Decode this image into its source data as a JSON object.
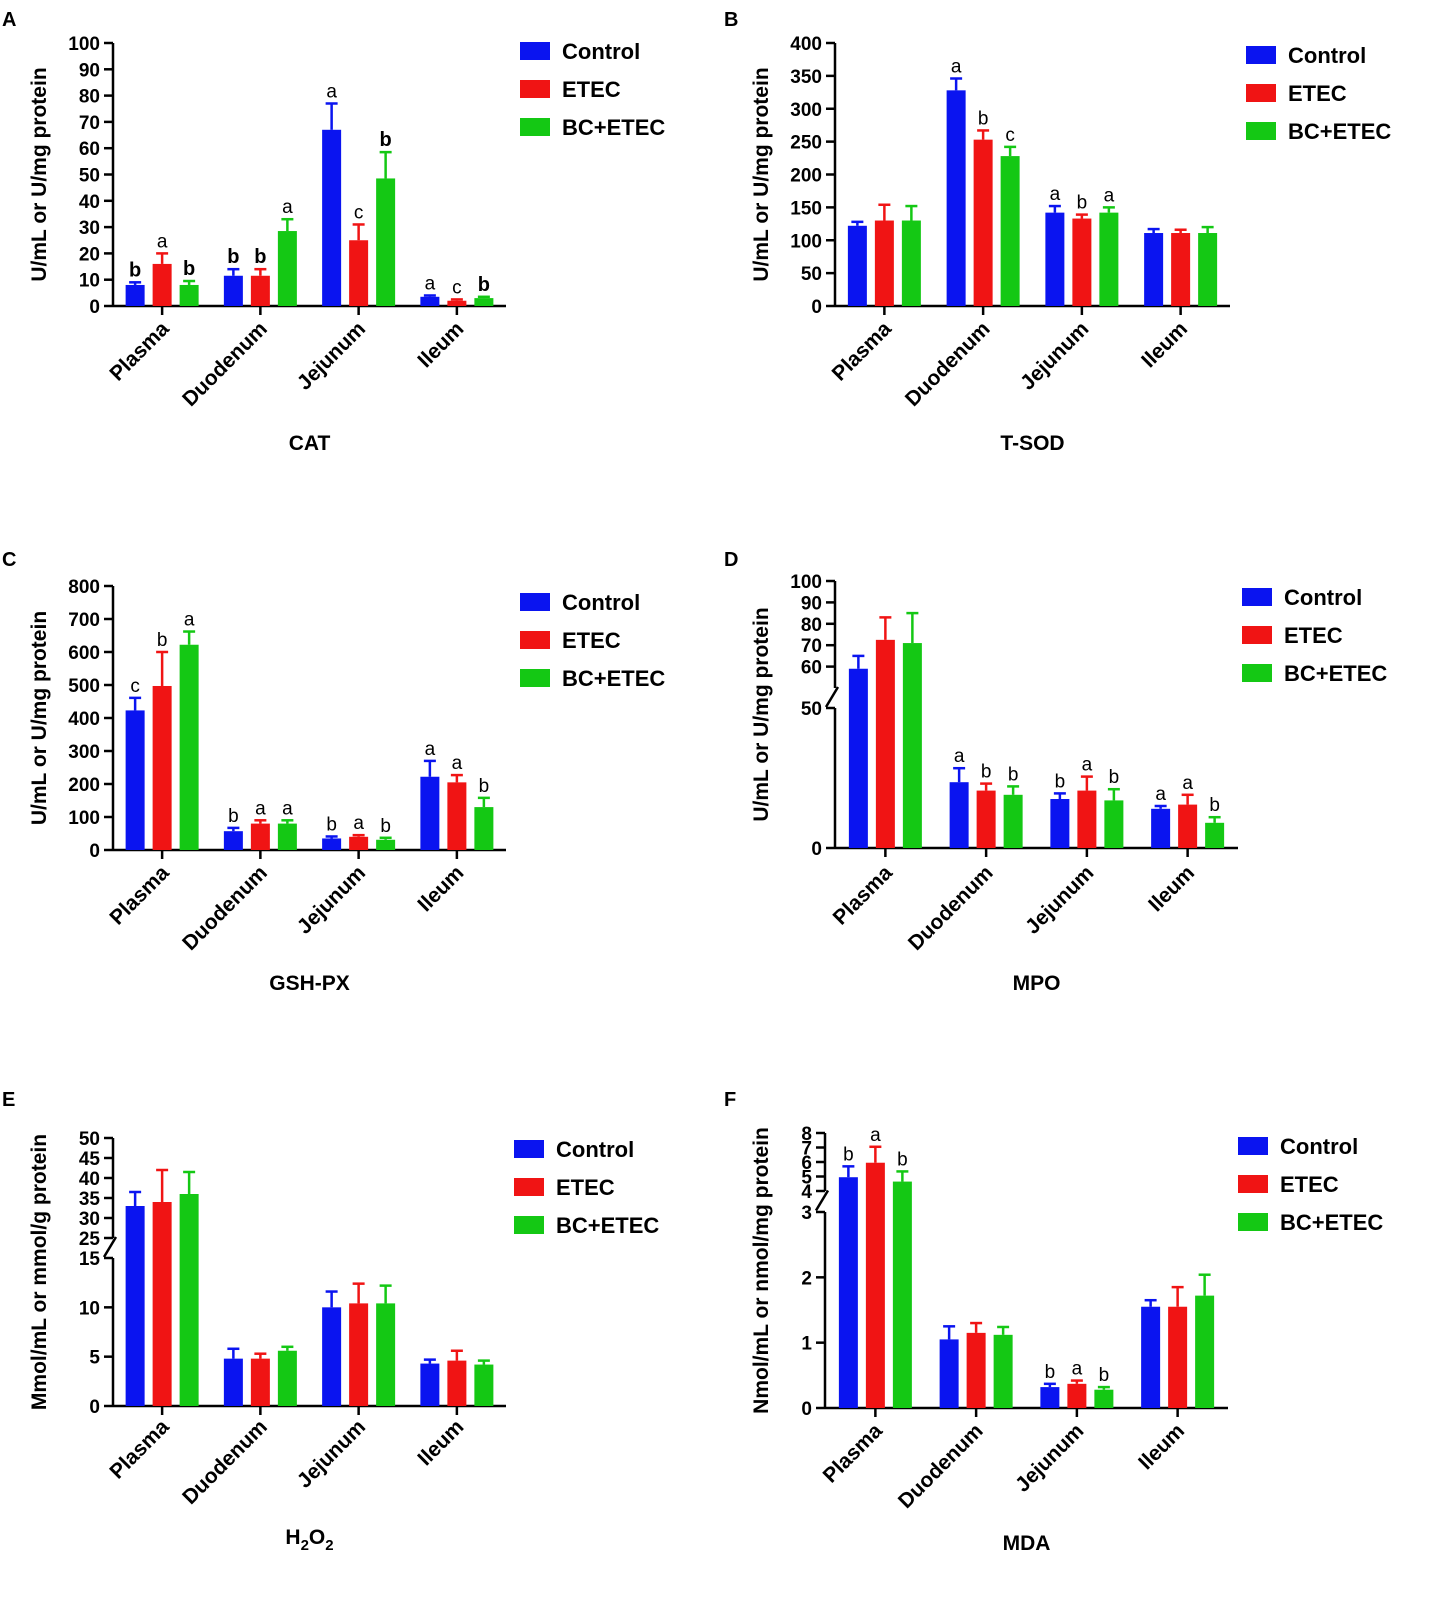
{
  "colors": {
    "control": "#0a14f0",
    "etec": "#f01414",
    "bcetec": "#14c814"
  },
  "legend": [
    "Control",
    "ETEC",
    "BC+ETEC"
  ],
  "chart_data": [
    {
      "panel": "A",
      "type": "bar",
      "title": "CAT",
      "title_sub": "",
      "ylabel": "U/mL or U/mg protein",
      "categories": [
        "Plasma",
        "Duodenum",
        "Jejunum",
        "Ileum"
      ],
      "ylim": [
        0,
        100
      ],
      "yticks": [
        0,
        10,
        20,
        30,
        40,
        50,
        60,
        70,
        80,
        90,
        100
      ],
      "series": [
        {
          "name": "Control",
          "values": [
            8,
            11.5,
            67,
            3.5
          ],
          "errors": [
            1,
            2.5,
            10,
            0.5
          ],
          "letters": [
            "b",
            "b",
            "a",
            "a"
          ]
        },
        {
          "name": "ETEC",
          "values": [
            16,
            11.5,
            25,
            2
          ],
          "errors": [
            4,
            2.5,
            6,
            0.5
          ],
          "letters": [
            "a",
            "b",
            "c",
            "c"
          ]
        },
        {
          "name": "BC+ETEC",
          "values": [
            8,
            28.5,
            48.5,
            3
          ],
          "errors": [
            1.5,
            4.5,
            10,
            0.5
          ],
          "letters": [
            "b",
            "a",
            "b",
            "b"
          ]
        }
      ],
      "bold_letters": [
        [
          "b",
          "b",
          "",
          ""
        ],
        [
          "",
          "b",
          "",
          ""
        ],
        [
          "b",
          "",
          "b",
          "b"
        ]
      ]
    },
    {
      "panel": "B",
      "type": "bar",
      "title": "T-SOD",
      "title_sub": "",
      "ylabel": "U/mL or U/mg protein",
      "categories": [
        "Plasma",
        "Duodenum",
        "Jejunum",
        "Ileum"
      ],
      "ylim": [
        0,
        400
      ],
      "yticks": [
        0,
        50,
        100,
        150,
        200,
        250,
        300,
        350,
        400
      ],
      "series": [
        {
          "name": "Control",
          "values": [
            122,
            328,
            142,
            111
          ],
          "errors": [
            6,
            18,
            10,
            6
          ],
          "letters": [
            "",
            "a",
            "a",
            ""
          ]
        },
        {
          "name": "ETEC",
          "values": [
            130,
            253,
            133,
            111
          ],
          "errors": [
            24,
            14,
            6,
            5
          ],
          "letters": [
            "",
            "b",
            "b",
            ""
          ]
        },
        {
          "name": "BC+ETEC",
          "values": [
            130,
            228,
            142,
            111
          ],
          "errors": [
            22,
            14,
            8,
            9
          ],
          "letters": [
            "",
            "c",
            "a",
            ""
          ]
        }
      ]
    },
    {
      "panel": "C",
      "type": "bar",
      "title": "GSH-PX",
      "title_sub": "",
      "ylabel": "U/mL or U/mg protein",
      "categories": [
        "Plasma",
        "Duodenum",
        "Jejunum",
        "Ileum"
      ],
      "ylim": [
        0,
        800
      ],
      "yticks": [
        0,
        100,
        200,
        300,
        400,
        500,
        600,
        700,
        800
      ],
      "series": [
        {
          "name": "Control",
          "values": [
            423,
            57,
            35,
            222
          ],
          "errors": [
            38,
            10,
            6,
            48
          ],
          "letters": [
            "c",
            "b",
            "b",
            "a"
          ]
        },
        {
          "name": "ETEC",
          "values": [
            497,
            80,
            40,
            205
          ],
          "errors": [
            103,
            10,
            5,
            22
          ],
          "letters": [
            "b",
            "a",
            "a",
            "a"
          ]
        },
        {
          "name": "BC+ETEC",
          "values": [
            622,
            80,
            31,
            130
          ],
          "errors": [
            40,
            10,
            6,
            28
          ],
          "letters": [
            "a",
            "a",
            "b",
            "b"
          ]
        }
      ]
    },
    {
      "panel": "D",
      "type": "bar",
      "title": "MPO",
      "title_sub": "",
      "ylabel": "U/mL or U/mg protein",
      "categories": [
        "Plasma",
        "Duodenum",
        "Jejunum",
        "Ileum"
      ],
      "ylim": [
        0,
        100
      ],
      "axis_break": [
        50,
        50
      ],
      "yticks": [
        0,
        50,
        60,
        70,
        80,
        90,
        100
      ],
      "series": [
        {
          "name": "Control",
          "values": [
            59,
            23.5,
            17.5,
            14
          ],
          "errors": [
            6,
            5,
            2,
            1
          ],
          "letters": [
            "",
            "a",
            "b",
            "a"
          ]
        },
        {
          "name": "ETEC",
          "values": [
            72.5,
            20.5,
            20.5,
            15.5
          ],
          "errors": [
            10.5,
            2.5,
            5,
            3.5
          ],
          "letters": [
            "",
            "b",
            "a",
            "a"
          ]
        },
        {
          "name": "BC+ETEC",
          "values": [
            71,
            19,
            17,
            9
          ],
          "errors": [
            14,
            3,
            4,
            2
          ],
          "letters": [
            "",
            "b",
            "b",
            "b"
          ]
        }
      ]
    },
    {
      "panel": "E",
      "type": "bar",
      "title": "H",
      "title_sub": "2",
      "title_tail": "O",
      "title_sub2": "2",
      "ylabel": "Mmol/mL or mmol/g protein",
      "categories": [
        "Plasma",
        "Duodenum",
        "Jejunum",
        "Ileum"
      ],
      "ylim": [
        0,
        50
      ],
      "axis_break": [
        15,
        25
      ],
      "yticks": [
        0,
        5,
        10,
        15,
        25,
        30,
        35,
        40,
        45,
        50
      ],
      "series": [
        {
          "name": "Control",
          "values": [
            33,
            4.8,
            10,
            4.3
          ],
          "errors": [
            3.5,
            1,
            1.6,
            0.4
          ],
          "letters": [
            "",
            "",
            "",
            ""
          ]
        },
        {
          "name": "ETEC",
          "values": [
            34,
            4.8,
            10.4,
            4.6
          ],
          "errors": [
            8,
            0.5,
            2,
            1
          ],
          "letters": [
            "",
            "",
            "",
            ""
          ]
        },
        {
          "name": "BC+ETEC",
          "values": [
            36,
            5.6,
            10.4,
            4.2
          ],
          "errors": [
            5.5,
            0.4,
            1.8,
            0.4
          ],
          "letters": [
            "",
            "",
            "",
            ""
          ]
        }
      ]
    },
    {
      "panel": "F",
      "type": "bar",
      "title": "MDA",
      "title_sub": "",
      "ylabel": "Nmol/mL or nmol/mg protein",
      "categories": [
        "Plasma",
        "Duodenum",
        "Jejunum",
        "Ileum"
      ],
      "ylim": [
        0,
        8
      ],
      "axis_break": [
        3,
        4
      ],
      "yticks": [
        0,
        1,
        2,
        3,
        4,
        5,
        6,
        7,
        8
      ],
      "series": [
        {
          "name": "Control",
          "values": [
            4.95,
            1.05,
            0.32,
            1.55
          ],
          "errors": [
            0.75,
            0.2,
            0.05,
            0.1
          ],
          "letters": [
            "b",
            "",
            "b",
            ""
          ]
        },
        {
          "name": "ETEC",
          "values": [
            5.95,
            1.15,
            0.37,
            1.55
          ],
          "errors": [
            1.1,
            0.15,
            0.05,
            0.3
          ],
          "letters": [
            "a",
            "",
            "a",
            ""
          ]
        },
        {
          "name": "BC+ETEC",
          "values": [
            4.65,
            1.12,
            0.28,
            1.72
          ],
          "errors": [
            0.7,
            0.12,
            0.04,
            0.32
          ],
          "letters": [
            "b",
            "",
            "b",
            ""
          ]
        }
      ]
    }
  ]
}
